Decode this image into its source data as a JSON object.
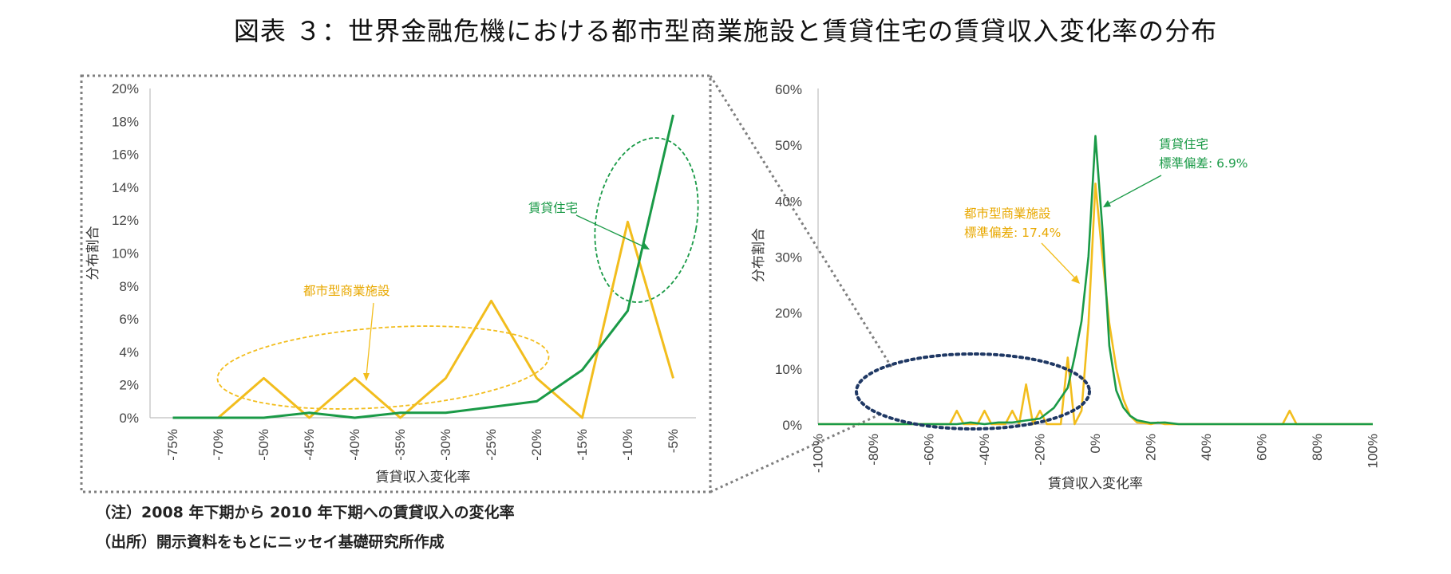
{
  "title": "図表 ３：世界金融危機における都市型商業施設と賃貸住宅の賃貸収入変化率の分布",
  "notes": {
    "note1": "（注）2008 年下期から 2010 年下期への賃貸収入の変化率",
    "note2": "（出所）開示資料をもとにニッセイ基礎研究所作成"
  },
  "colors": {
    "commercial": "#f2bd1d",
    "residential": "#1a9a47",
    "highlight": "#1f3864",
    "zoom": "#7f7f7f"
  },
  "chart_data": [
    {
      "type": "line",
      "xlabel": "賃貸収入変化率",
      "ylabel": "分布割合",
      "x": [
        -75,
        -70,
        -50,
        -45,
        -40,
        -35,
        -30,
        -25,
        -20,
        -15,
        -10,
        -5
      ],
      "x_tick_labels": [
        "-75%",
        "-70%",
        "-50%",
        "-45%",
        "-40%",
        "-35%",
        "-30%",
        "-25%",
        "-20%",
        "-15%",
        "-10%",
        "-5%"
      ],
      "ylim": [
        0,
        20
      ],
      "y_ticks": [
        0,
        2,
        4,
        6,
        8,
        10,
        12,
        14,
        16,
        18,
        20
      ],
      "y_tick_labels": [
        "0%",
        "2%",
        "4%",
        "6%",
        "8%",
        "10%",
        "12%",
        "14%",
        "16%",
        "18%",
        "20%"
      ],
      "series": [
        {
          "name": "都市型商業施設",
          "values": [
            0,
            0,
            2.4,
            0,
            2.4,
            0,
            2.4,
            7.1,
            2.4,
            0,
            11.9,
            2.4
          ]
        },
        {
          "name": "賃貸住宅",
          "values": [
            0,
            0,
            0,
            0.3,
            0,
            0.3,
            0.3,
            0.65,
            1.0,
            2.9,
            6.5,
            18.4
          ]
        }
      ],
      "annotations": [
        {
          "text": "都市型商業施設",
          "series": "都市型商業施設"
        },
        {
          "text": "賃貸住宅",
          "series": "賃貸住宅"
        }
      ],
      "grid": false
    },
    {
      "type": "line",
      "xlabel": "賃貸収入変化率",
      "ylabel": "分布割合",
      "xlim": [
        -100,
        100
      ],
      "x_ticks": [
        -100,
        -80,
        -60,
        -40,
        -20,
        0,
        20,
        40,
        60,
        80,
        100
      ],
      "x_tick_labels": [
        "-100%",
        "-80%",
        "-60%",
        "-40%",
        "-20%",
        "0%",
        "20%",
        "40%",
        "60%",
        "80%",
        "100%"
      ],
      "ylim": [
        0,
        60
      ],
      "y_ticks": [
        0,
        10,
        20,
        30,
        40,
        50,
        60
      ],
      "y_tick_labels": [
        "0%",
        "10%",
        "20%",
        "30%",
        "40%",
        "50%",
        "60%"
      ],
      "series": [
        {
          "name": "都市型商業施設",
          "x": [
            -100,
            -55,
            -52.5,
            -50,
            -47.5,
            -45,
            -42.5,
            -40,
            -37.5,
            -35,
            -32.5,
            -30,
            -27.5,
            -25,
            -22.5,
            -20,
            -17.5,
            -15,
            -12.5,
            -10,
            -7.5,
            -5,
            -2.5,
            0,
            2.5,
            5,
            7.5,
            10,
            12.5,
            15,
            17.5,
            20,
            22.5,
            25,
            27.5,
            30,
            65,
            67.5,
            70,
            72.5,
            75,
            100
          ],
          "y": [
            0,
            0,
            0,
            2.4,
            0,
            0,
            0,
            2.4,
            0,
            0,
            0,
            2.4,
            0,
            7.1,
            0,
            2.4,
            0,
            0,
            0,
            11.9,
            0,
            2.4,
            18,
            43,
            30,
            18,
            10,
            4.5,
            1.5,
            0.3,
            0.2,
            0,
            0.3,
            0,
            0,
            0,
            0,
            0,
            2.4,
            0,
            0,
            0
          ]
        },
        {
          "name": "賃貸住宅",
          "x": [
            -100,
            -50,
            -45,
            -40,
            -35,
            -30,
            -25,
            -20,
            -15,
            -10,
            -7.5,
            -5,
            -2.5,
            0,
            2.5,
            5,
            7.5,
            10,
            12.5,
            15,
            20,
            25,
            30,
            100
          ],
          "y": [
            0,
            0,
            0.3,
            0,
            0.3,
            0.3,
            0.65,
            1.0,
            2.9,
            6.5,
            12,
            18.4,
            30,
            51.5,
            35,
            14,
            6,
            3,
            1.5,
            0.7,
            0.2,
            0.3,
            0,
            0
          ]
        }
      ],
      "annotations": [
        {
          "line1": "都市型商業施設",
          "line2": "標準偏差: 17.4%",
          "series": "都市型商業施設"
        },
        {
          "line1": "賃貸住宅",
          "line2": "標準偏差: 6.9%",
          "series": "賃貸住宅"
        }
      ],
      "grid": false
    }
  ]
}
